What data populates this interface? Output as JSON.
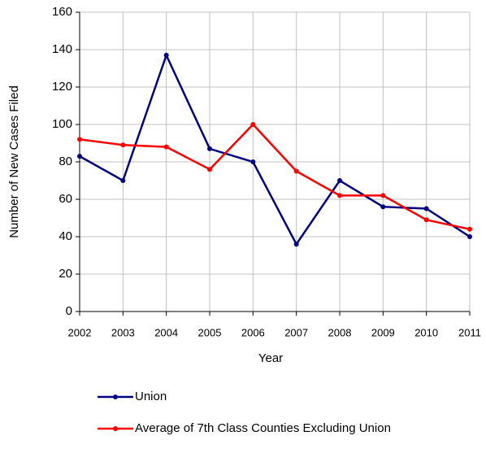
{
  "chart_data": {
    "type": "line",
    "x_label": "Year",
    "y_label": "Number of New Cases Filed",
    "categories": [
      "2002",
      "2003",
      "2004",
      "2005",
      "2006",
      "2007",
      "2008",
      "2009",
      "2010",
      "2011"
    ],
    "series": [
      {
        "name": "Union",
        "color": "#000080",
        "values": [
          83,
          70,
          137,
          87,
          80,
          36,
          70,
          56,
          55,
          40
        ]
      },
      {
        "name": "Average of 7th Class Counties Excluding Union",
        "color": "#ff0000",
        "values": [
          92,
          89,
          88,
          76,
          100,
          75,
          62,
          62,
          49,
          44
        ]
      }
    ],
    "ylim": [
      0,
      160
    ],
    "yticks": [
      0,
      20,
      40,
      60,
      80,
      100,
      120,
      140,
      160
    ],
    "grid": true,
    "legend": "bottom"
  }
}
